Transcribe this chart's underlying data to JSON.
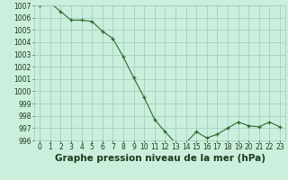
{
  "x": [
    0,
    1,
    2,
    3,
    4,
    5,
    6,
    7,
    8,
    9,
    10,
    11,
    12,
    13,
    14,
    15,
    16,
    17,
    18,
    19,
    20,
    21,
    22,
    23
  ],
  "y": [
    1007.0,
    1007.2,
    1006.5,
    1005.8,
    1005.8,
    1005.7,
    1004.9,
    1004.3,
    1002.8,
    1001.1,
    999.5,
    997.7,
    996.7,
    995.8,
    995.8,
    996.7,
    996.2,
    996.5,
    997.0,
    997.5,
    997.2,
    997.1,
    997.5,
    997.1
  ],
  "line_color": "#2d6a2d",
  "marker_color": "#2d6a2d",
  "bg_color": "#cceedd",
  "grid_color": "#99ccbb",
  "title": "Graphe pression niveau de la mer (hPa)",
  "tick_color": "#1a3a1a",
  "ylim_min": 996,
  "ylim_max": 1007,
  "ytick_step": 1,
  "xtick_labels": [
    "0",
    "1",
    "2",
    "3",
    "4",
    "5",
    "6",
    "7",
    "8",
    "9",
    "10",
    "11",
    "12",
    "13",
    "14",
    "15",
    "16",
    "17",
    "18",
    "19",
    "20",
    "21",
    "22",
    "23"
  ],
  "title_fontsize": 7.5,
  "tick_fontsize": 5.5,
  "figwidth": 3.2,
  "figheight": 2.0,
  "dpi": 100
}
